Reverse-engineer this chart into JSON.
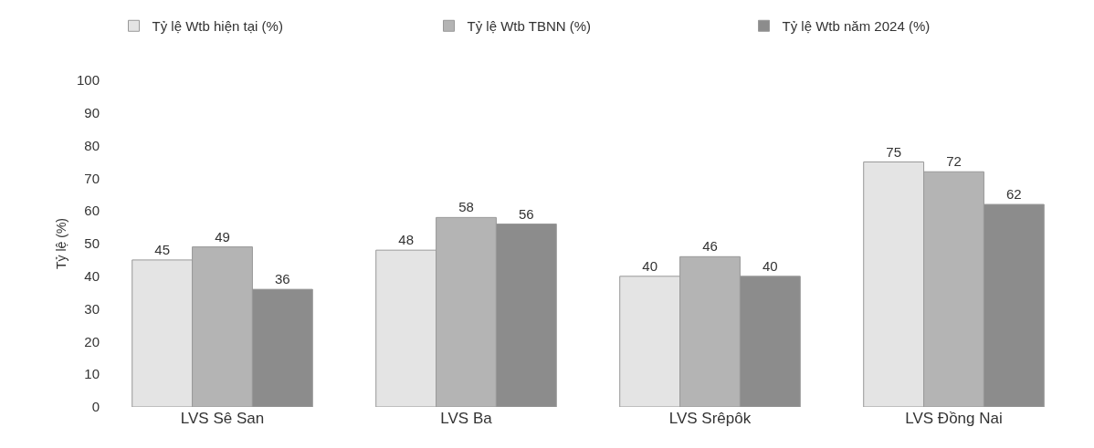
{
  "chart_data": {
    "type": "bar",
    "ylabel": "Tỷ lệ (%)",
    "categories": [
      "LVS Sê San",
      "LVS Ba",
      "LVS Srêpôk",
      "LVS Đồng Nai"
    ],
    "series": [
      {
        "name": "Tỷ lệ Wtb hiện tại (%)",
        "color": "#e4e4e4",
        "values": [
          45,
          48,
          40,
          75
        ]
      },
      {
        "name": "Tỷ lệ Wtb TBNN (%)",
        "color": "#b4b4b4",
        "values": [
          49,
          58,
          46,
          72
        ]
      },
      {
        "name": "Tỷ lệ Wtb năm 2024 (%)",
        "color": "#8c8c8c",
        "values": [
          36,
          56,
          40,
          62
        ]
      }
    ],
    "ylim": [
      0,
      100
    ],
    "yticks": [
      0,
      10,
      20,
      30,
      40,
      50,
      60,
      70,
      80,
      90,
      100
    ],
    "grid": false,
    "legend": "top",
    "data_labels": true
  }
}
